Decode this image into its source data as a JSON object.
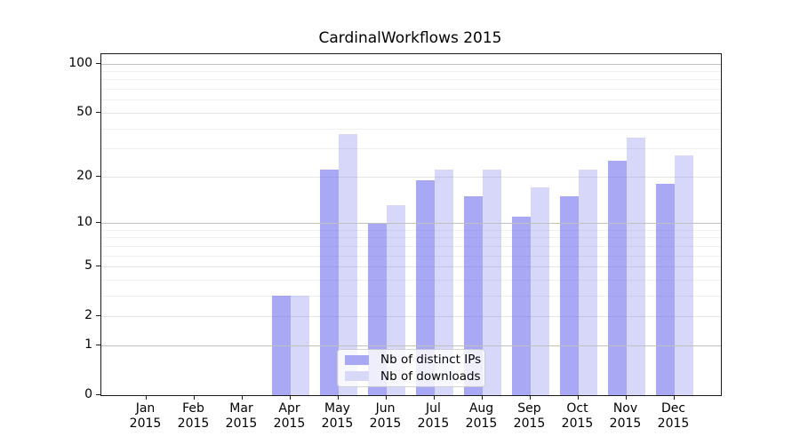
{
  "chart_data": {
    "type": "bar",
    "title": "CardinalWorkflows 2015",
    "categories": [
      "Jan 2015",
      "Feb 2015",
      "Mar 2015",
      "Apr 2015",
      "May 2015",
      "Jun 2015",
      "Jul 2015",
      "Aug 2015",
      "Sep 2015",
      "Oct 2015",
      "Nov 2015",
      "Dec 2015"
    ],
    "series": [
      {
        "name": "Nb of distinct IPs",
        "fill": "rgba(97,97,235,0.55)",
        "solid": "#a8a8f4",
        "values": [
          0,
          0,
          0,
          3,
          22,
          10,
          19,
          15,
          11,
          15,
          25,
          18
        ]
      },
      {
        "name": "Nb of downloads",
        "fill": "rgba(97,97,235,0.25)",
        "solid": "#d8d8f8",
        "values": [
          0,
          0,
          0,
          3,
          37,
          13,
          22,
          22,
          17,
          22,
          35,
          27
        ]
      }
    ],
    "accent_color": "#6161eb",
    "yscale": "log1p",
    "y_ticks": [
      0,
      1,
      2,
      5,
      10,
      20,
      50,
      100
    ],
    "decade_gridlines": [
      1,
      10,
      100
    ],
    "mid_gridlines": [
      2,
      5,
      20,
      50
    ],
    "minor_gridlines": [
      3,
      4,
      6,
      7,
      8,
      9,
      30,
      40,
      60,
      70,
      80,
      90
    ],
    "ylim": [
      0,
      114
    ],
    "grid": true,
    "legend_position": "lower center"
  }
}
